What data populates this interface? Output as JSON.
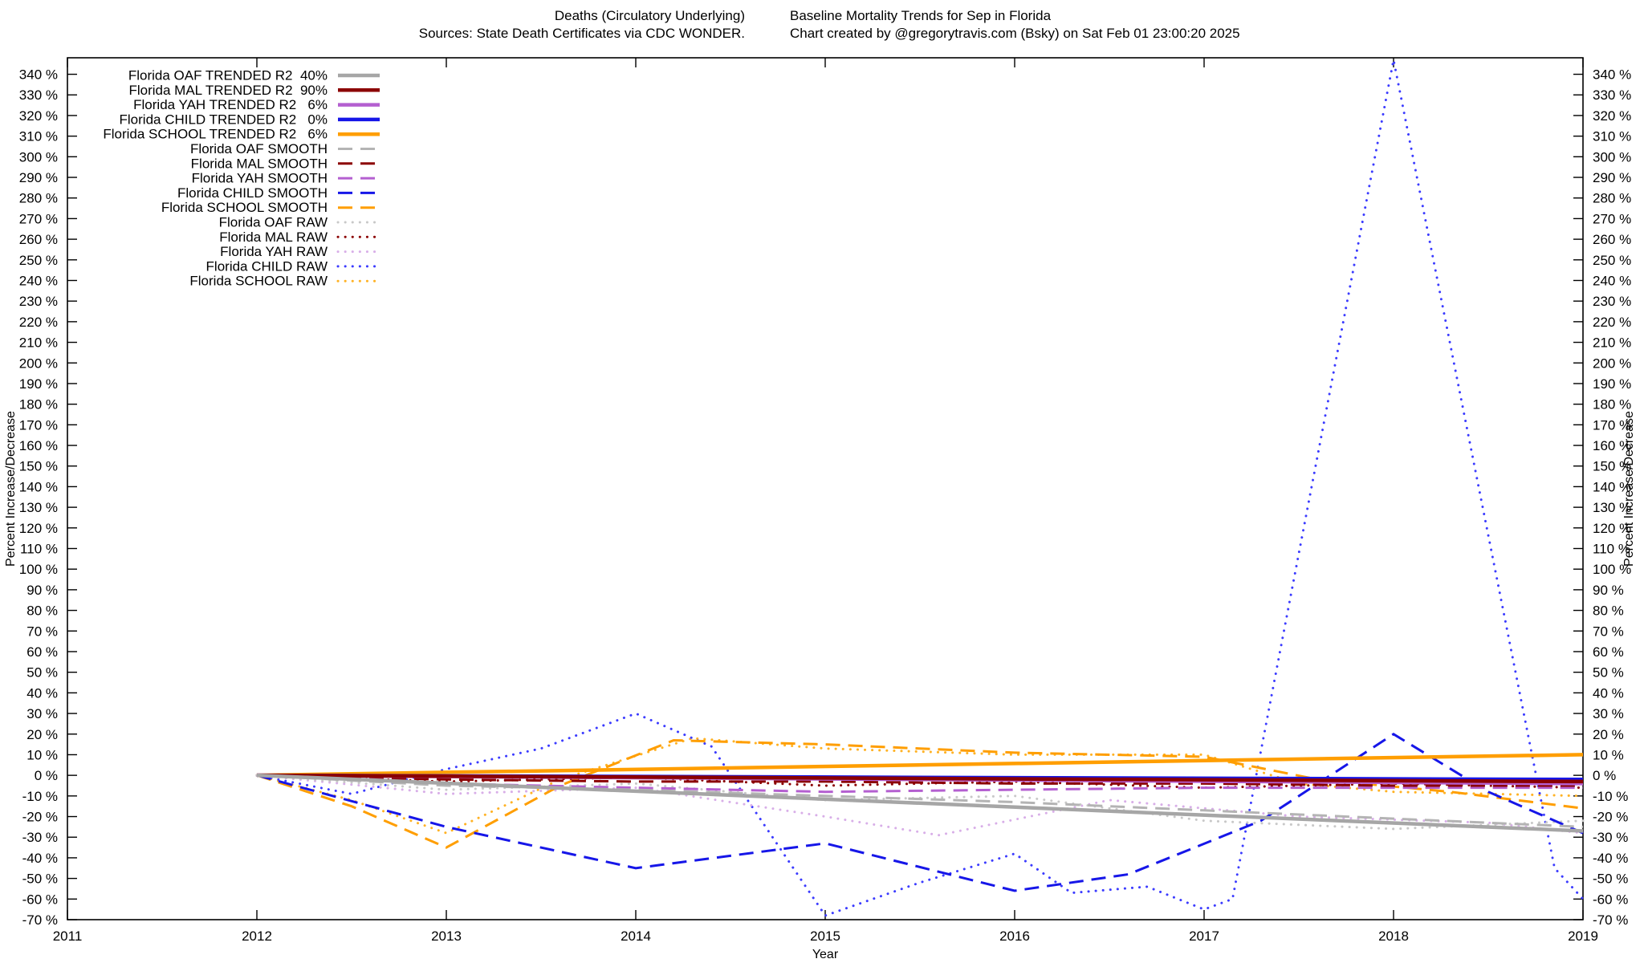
{
  "header": {
    "title_left": "Deaths (Circulatory Underlying)",
    "title_right": "Baseline Mortality Trends for Sep in Florida",
    "sources_left": "Sources: State Death Certificates via CDC WONDER.",
    "credit_right": "Chart created by @gregorytravis.com (Bsky) on Sat Feb 01 23:00:20 2025"
  },
  "axes": {
    "xlabel": "Year",
    "ylabel_left": "Percent Increase/Decrease",
    "ylabel_right": "Percent Increase/Decrease"
  },
  "chart_data": {
    "type": "line",
    "title": "Deaths (Circulatory Underlying)  Baseline Mortality Trends for Sep in Florida",
    "xlabel": "Year",
    "ylabel": "Percent Increase/Decrease",
    "grid": false,
    "legend_position": "top-left",
    "x_range": [
      2011,
      2019
    ],
    "y_range": [
      -70,
      348
    ],
    "y_tick_min": -70,
    "y_tick_max": 340,
    "y_tick_step": 10,
    "y_tick_suffix": " %",
    "x_ticks": [
      2011,
      2012,
      2013,
      2014,
      2015,
      2016,
      2017,
      2018,
      2019
    ],
    "series": [
      {
        "label": "Florida OAF TRENDED R2  40%",
        "r2": "40%",
        "style": "solid",
        "color": "#a6a6a6",
        "x": [
          2012,
          2019
        ],
        "y": [
          0,
          -27
        ]
      },
      {
        "label": "Florida MAL TRENDED R2  90%",
        "r2": "90%",
        "style": "solid",
        "color": "#8b0000",
        "x": [
          2012,
          2019
        ],
        "y": [
          0,
          -3
        ]
      },
      {
        "label": "Florida YAH TRENDED R2   6%",
        "r2": "6%",
        "style": "solid",
        "color": "#b45fd0",
        "x": [
          2012,
          2019
        ],
        "y": [
          0,
          -4
        ]
      },
      {
        "label": "Florida CHILD TRENDED R2   0%",
        "r2": "0%",
        "style": "solid",
        "color": "#1616e8",
        "x": [
          2012,
          2019
        ],
        "y": [
          0,
          -2
        ]
      },
      {
        "label": "Florida SCHOOL TRENDED R2   6%",
        "r2": "6%",
        "style": "solid",
        "color": "#ff9e00",
        "x": [
          2012,
          2019
        ],
        "y": [
          0,
          10
        ]
      },
      {
        "label": "Florida OAF SMOOTH",
        "style": "dashed",
        "color": "#b4b4b4",
        "x": [
          2012,
          2013,
          2014,
          2015,
          2016,
          2017,
          2018,
          2019
        ],
        "y": [
          0,
          -5,
          -7,
          -10,
          -13,
          -17,
          -21,
          -25
        ]
      },
      {
        "label": "Florida MAL SMOOTH",
        "style": "dashed",
        "color": "#8b0000",
        "x": [
          2012,
          2013,
          2014,
          2015,
          2016,
          2017,
          2018,
          2019
        ],
        "y": [
          0,
          -2,
          -3,
          -3,
          -4,
          -4,
          -5,
          -5
        ]
      },
      {
        "label": "Florida YAH SMOOTH",
        "style": "dashed",
        "color": "#b45fd0",
        "x": [
          2012,
          2013,
          2014,
          2015,
          2016,
          2017,
          2018,
          2019
        ],
        "y": [
          0,
          -4,
          -6,
          -8,
          -7,
          -6,
          -6,
          -6
        ]
      },
      {
        "label": "Florida CHILD SMOOTH",
        "style": "dashed",
        "color": "#1616e8",
        "x": [
          2012,
          2013,
          2014,
          2015,
          2016,
          2016.6,
          2017.3,
          2018,
          2018.5,
          2019
        ],
        "y": [
          0,
          -25,
          -45,
          -33,
          -56,
          -48,
          -22,
          20,
          -8,
          -28
        ]
      },
      {
        "label": "Florida SCHOOL SMOOTH",
        "style": "dashed",
        "color": "#ff9e00",
        "x": [
          2012,
          2012.5,
          2013,
          2013.6,
          2014.2,
          2015,
          2016,
          2017,
          2017.6,
          2018.3,
          2019
        ],
        "y": [
          0,
          -15,
          -35,
          -5,
          17,
          15,
          11,
          9,
          -2,
          -8,
          -16
        ]
      },
      {
        "label": "Florida OAF RAW",
        "style": "dotted",
        "color": "#c8c8c8",
        "x": [
          2012,
          2013,
          2014,
          2015,
          2016,
          2017,
          2018,
          2019
        ],
        "y": [
          0,
          -7,
          -4,
          -12,
          -10,
          -22,
          -26,
          -22
        ]
      },
      {
        "label": "Florida MAL RAW",
        "style": "dotted",
        "color": "#8b0000",
        "x": [
          2012,
          2013,
          2014,
          2015,
          2016,
          2017,
          2018,
          2019
        ],
        "y": [
          0,
          -3,
          -1,
          -5,
          -3,
          -6,
          -4,
          -6
        ]
      },
      {
        "label": "Florida YAH RAW",
        "style": "dotted",
        "color": "#d8aee8",
        "x": [
          2012,
          2013,
          2014,
          2015,
          2015.6,
          2016.5,
          2017.5,
          2018.5,
          2019
        ],
        "y": [
          0,
          -9,
          -6,
          -20,
          -29,
          -12,
          -20,
          -23,
          -28
        ]
      },
      {
        "label": "Florida CHILD RAW",
        "style": "dotted",
        "color": "#3b3bff",
        "x": [
          2012,
          2012.5,
          2013,
          2013.5,
          2014,
          2014.4,
          2015,
          2015.5,
          2016,
          2016.3,
          2016.7,
          2017,
          2017.15,
          2018,
          2018.85,
          2019
        ],
        "y": [
          0,
          -9,
          3,
          13,
          30,
          14,
          -68,
          -52,
          -38,
          -57,
          -54,
          -65,
          -60,
          347,
          -45,
          -60
        ]
      },
      {
        "label": "Florida SCHOOL RAW",
        "style": "dotted",
        "color": "#ffb224",
        "x": [
          2012,
          2012.5,
          2013,
          2013.6,
          2014.3,
          2015,
          2016,
          2017,
          2017.5,
          2018,
          2019
        ],
        "y": [
          0,
          -12,
          -28,
          -2,
          18,
          13,
          10,
          10,
          -4,
          -8,
          -10
        ]
      }
    ]
  }
}
